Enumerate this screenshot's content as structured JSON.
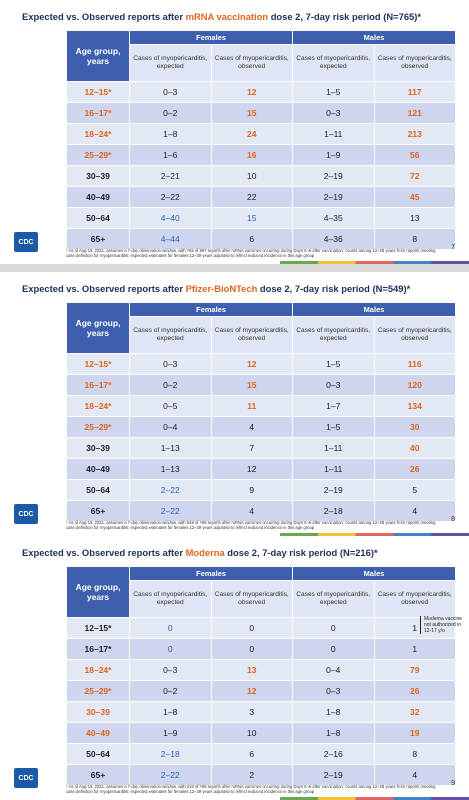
{
  "slides": [
    {
      "title": {
        "before": "Expected vs. Observed reports after ",
        "highlight": "mRNA vaccination",
        "after": " dose 2, 7-day risk period (N=765)*"
      },
      "table": {
        "header": {
          "age": "Age group, years",
          "females": "Females",
          "males": "Males",
          "subheaders": [
            "Cases of myopericarditis, expected",
            "Cases of myopericarditis, observed",
            "Cases of myopericarditis, expected",
            "Cases of myopericarditis, observed"
          ]
        },
        "rows": [
          {
            "age": "12–15*",
            "age_color": "orange",
            "cells": [
              "0–3",
              "12",
              "1–5",
              "117"
            ],
            "colors": [
              "dark",
              "orange",
              "dark",
              "orange"
            ]
          },
          {
            "age": "16–17*",
            "age_color": "orange",
            "cells": [
              "0–2",
              "15",
              "0–3",
              "121"
            ],
            "colors": [
              "dark",
              "orange",
              "dark",
              "orange"
            ]
          },
          {
            "age": "18–24*",
            "age_color": "orange",
            "cells": [
              "1–8",
              "24",
              "1–11",
              "213"
            ],
            "colors": [
              "dark",
              "orange",
              "dark",
              "orange"
            ]
          },
          {
            "age": "25–29*",
            "age_color": "orange",
            "cells": [
              "1–6",
              "16",
              "1–9",
              "56"
            ],
            "colors": [
              "dark",
              "orange",
              "dark",
              "orange"
            ]
          },
          {
            "age": "30–39",
            "age_color": "dark",
            "cells": [
              "2–21",
              "10",
              "2–19",
              "72"
            ],
            "colors": [
              "dark",
              "dark",
              "dark",
              "orange"
            ]
          },
          {
            "age": "40–49",
            "age_color": "dark",
            "cells": [
              "2–22",
              "22",
              "2–19",
              "45"
            ],
            "colors": [
              "dark",
              "dark",
              "dark",
              "orange"
            ]
          },
          {
            "age": "50–64",
            "age_color": "dark",
            "cells": [
              "4–40",
              "15",
              "4–35",
              "13"
            ],
            "colors": [
              "blue",
              "blue",
              "dark",
              "dark"
            ]
          },
          {
            "age": "65+",
            "age_color": "dark",
            "cells": [
              "4–44",
              "6",
              "4–36",
              "8"
            ],
            "colors": [
              "blue",
              "dark",
              "dark",
              "dark"
            ]
          }
        ]
      },
      "footnote": "* As of Aug 18, 2021; assumes a 7-day observation window, with 765 of 897 reports after mRNA vaccines occurring during Days 0–6 after vaccination; counts among 12–29 years from reports meeting case definition for myopericarditis; expected estimates for females 12–29 years adjusted to reflect reduced incidence in this age group",
      "page": "7",
      "logo": "CDC"
    },
    {
      "title": {
        "before": "Expected vs. Observed reports after ",
        "highlight": "Pfizer-BioNTech",
        "after": " dose 2, 7-day risk period (N=549)*"
      },
      "table": {
        "header": {
          "age": "Age group, years",
          "females": "Females",
          "males": "Males",
          "subheaders": [
            "Cases of myopericarditis, expected",
            "Cases of myopericarditis, observed",
            "Cases of myopericarditis, expected",
            "Cases of myopericarditis, observed"
          ]
        },
        "rows": [
          {
            "age": "12–15*",
            "age_color": "orange",
            "cells": [
              "0–3",
              "12",
              "1–5",
              "116"
            ],
            "colors": [
              "dark",
              "orange",
              "dark",
              "orange"
            ]
          },
          {
            "age": "16–17*",
            "age_color": "orange",
            "cells": [
              "0–2",
              "15",
              "0–3",
              "120"
            ],
            "colors": [
              "dark",
              "orange",
              "dark",
              "orange"
            ]
          },
          {
            "age": "18–24*",
            "age_color": "orange",
            "cells": [
              "0–5",
              "11",
              "1–7",
              "134"
            ],
            "colors": [
              "dark",
              "orange",
              "dark",
              "orange"
            ]
          },
          {
            "age": "25–29*",
            "age_color": "orange",
            "cells": [
              "0–4",
              "4",
              "1–5",
              "30"
            ],
            "colors": [
              "dark",
              "dark",
              "dark",
              "orange"
            ]
          },
          {
            "age": "30–39",
            "age_color": "dark",
            "cells": [
              "1–13",
              "7",
              "1–11",
              "40"
            ],
            "colors": [
              "dark",
              "dark",
              "dark",
              "orange"
            ]
          },
          {
            "age": "40–49",
            "age_color": "dark",
            "cells": [
              "1–13",
              "12",
              "1–11",
              "26"
            ],
            "colors": [
              "dark",
              "dark",
              "dark",
              "orange"
            ]
          },
          {
            "age": "50–64",
            "age_color": "dark",
            "cells": [
              "2–22",
              "9",
              "2–19",
              "5"
            ],
            "colors": [
              "blue",
              "dark",
              "dark",
              "dark"
            ]
          },
          {
            "age": "65+",
            "age_color": "dark",
            "cells": [
              "2–22",
              "4",
              "2–18",
              "4"
            ],
            "colors": [
              "blue",
              "dark",
              "dark",
              "dark"
            ]
          }
        ]
      },
      "footnote": "* As of Aug 18, 2021; assumes a 7-day observation window, with 549 of 765 reports after mRNA vaccines occurring during Days 0–6 after vaccination; counts among 12–29 years from reports meeting case definition for myopericarditis; expected estimates for females 12–29 years adjusted to reflect reduced incidence in this age group",
      "page": "8",
      "logo": "CDC"
    },
    {
      "title": {
        "before": "Expected vs. Observed reports after ",
        "highlight": "Moderna",
        "after": " dose 2, 7-day risk period (N=216)*"
      },
      "table": {
        "header": {
          "age": "Age group, years",
          "females": "Females",
          "males": "Males",
          "subheaders": [
            "Cases of myopericarditis, expected",
            "Cases of myopericarditis, observed",
            "Cases of myopericarditis, expected",
            "Cases of myopericarditis, observed"
          ]
        },
        "rows": [
          {
            "age": "12–15*",
            "age_color": "dark",
            "cells": [
              "0",
              "0",
              "0",
              "1"
            ],
            "colors": [
              "blue",
              "dark",
              "dark",
              "dark"
            ]
          },
          {
            "age": "16–17*",
            "age_color": "dark",
            "cells": [
              "0",
              "0",
              "0",
              "1"
            ],
            "colors": [
              "blue",
              "dark",
              "dark",
              "dark"
            ]
          },
          {
            "age": "18–24*",
            "age_color": "orange",
            "cells": [
              "0–3",
              "13",
              "0–4",
              "79"
            ],
            "colors": [
              "dark",
              "orange",
              "dark",
              "orange"
            ]
          },
          {
            "age": "25–29*",
            "age_color": "orange",
            "cells": [
              "0–2",
              "12",
              "0–3",
              "26"
            ],
            "colors": [
              "dark",
              "orange",
              "dark",
              "orange"
            ]
          },
          {
            "age": "30–39",
            "age_color": "orange",
            "cells": [
              "1–8",
              "3",
              "1–8",
              "32"
            ],
            "colors": [
              "dark",
              "dark",
              "dark",
              "orange"
            ]
          },
          {
            "age": "40–49",
            "age_color": "orange",
            "cells": [
              "1–9",
              "10",
              "1–8",
              "19"
            ],
            "colors": [
              "dark",
              "dark",
              "dark",
              "orange"
            ]
          },
          {
            "age": "50–64",
            "age_color": "dark",
            "cells": [
              "2–18",
              "6",
              "2–16",
              "8"
            ],
            "colors": [
              "blue",
              "dark",
              "dark",
              "dark"
            ]
          },
          {
            "age": "65+",
            "age_color": "dark",
            "cells": [
              "2–22",
              "2",
              "2–19",
              "4"
            ],
            "colors": [
              "blue",
              "dark",
              "dark",
              "dark"
            ]
          }
        ]
      },
      "side_note": "Moderna vaccine not authorized in 12-17 y/o",
      "footnote": "* As of Aug 18, 2021; assumes a 7-day observation window, with 216 of 765 reports after mRNA vaccines occurring during Days 0–6 after vaccination; counts among 12–29 years from reports meeting case definition for myopericarditis; expected estimates for females 12–29 years adjusted to reflect reduced incidence in this age group",
      "page": "9",
      "logo": "CDC"
    }
  ]
}
